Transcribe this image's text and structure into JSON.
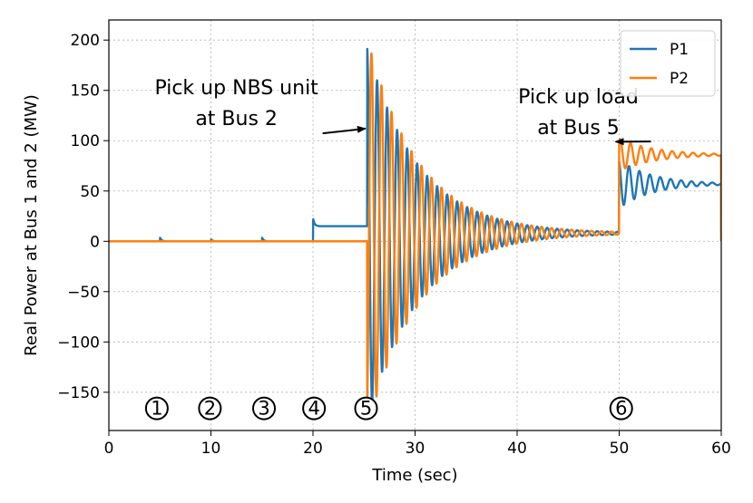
{
  "chart_data": {
    "type": "line",
    "title": "",
    "xlabel": "Time (sec)",
    "ylabel": "Real Power at Bus 1 and 2 (MW)",
    "xlim": [
      0,
      60
    ],
    "ylim": [
      -188,
      220
    ],
    "xticks": [
      0,
      10,
      20,
      30,
      40,
      50,
      60
    ],
    "xtick_labels": [
      "0",
      "10",
      "20",
      "30",
      "40",
      "50",
      "60"
    ],
    "yticks": [
      -150,
      -100,
      -50,
      0,
      50,
      100,
      150,
      200
    ],
    "ytick_labels": [
      "−150",
      "−100",
      "−50",
      "0",
      "50",
      "100",
      "150",
      "200"
    ],
    "grid": true,
    "legend_position": "top-right",
    "series": [
      {
        "name": "P1",
        "color": "#1f77b4",
        "description": "0 MW until 20 s with small blips at ~5, 10, 15 s; step to ~15 MW at 20 s (spike to ~23); large decaying oscillation from 25 s (peak ~187) settling to ~8 MW by ~48 s; step at 50 s to an oscillation settling near ~57 MW",
        "segments": [
          {
            "t0": 0,
            "t1": 20,
            "base": 0
          },
          {
            "t0": 20,
            "t1": 25.3,
            "base": 15
          },
          {
            "t0": 25.3,
            "t1": 50,
            "base": 8,
            "amp": 185,
            "decay": 5.0,
            "freq": 1.02,
            "phase": 1.55
          },
          {
            "t0": 50,
            "t1": 60,
            "base": 57,
            "amp": 24,
            "decay": 3.2,
            "freq": 0.98,
            "phase": 1.9
          }
        ],
        "blips": [
          {
            "t": 5,
            "amp": 4
          },
          {
            "t": 10,
            "amp": 2
          },
          {
            "t": 15,
            "amp": 4
          },
          {
            "t": 20,
            "amp": 8
          }
        ]
      },
      {
        "name": "P2",
        "color": "#ff7f0e",
        "description": "0 MW until 25 s; large decaying oscillation from 25 s (peak ~199) settling to ~8 MW by ~48 s; step at 50 s to an oscillation settling near ~86 MW",
        "segments": [
          {
            "t0": 0,
            "t1": 25.3,
            "base": 0
          },
          {
            "t0": 25.3,
            "t1": 50,
            "base": 8,
            "amp": 195,
            "decay": 5.0,
            "freq": 1.02,
            "phase": -1.2
          },
          {
            "t0": 50,
            "t1": 60,
            "base": 86,
            "amp": 16,
            "decay": 3.5,
            "freq": 0.98,
            "phase": 1.0
          }
        ],
        "blips": []
      }
    ],
    "annotations": [
      {
        "lines": [
          "Pick up NBS unit",
          "at Bus 2"
        ],
        "arrow_to": [
          25.5,
          112
        ],
        "text_at": [
          12.5,
          146
        ]
      },
      {
        "lines": [
          "Pick up load",
          "at Bus 5"
        ],
        "arrow_to": [
          50,
          99
        ],
        "text_at": [
          46,
          137
        ]
      }
    ],
    "markers": [
      {
        "label": "1",
        "x": 4.7,
        "y": -166
      },
      {
        "label": "2",
        "x": 9.9,
        "y": -166
      },
      {
        "label": "3",
        "x": 15.2,
        "y": -166
      },
      {
        "label": "4",
        "x": 20.1,
        "y": -166
      },
      {
        "label": "5",
        "x": 25.2,
        "y": -166
      },
      {
        "label": "6",
        "x": 50.2,
        "y": -166
      }
    ]
  }
}
